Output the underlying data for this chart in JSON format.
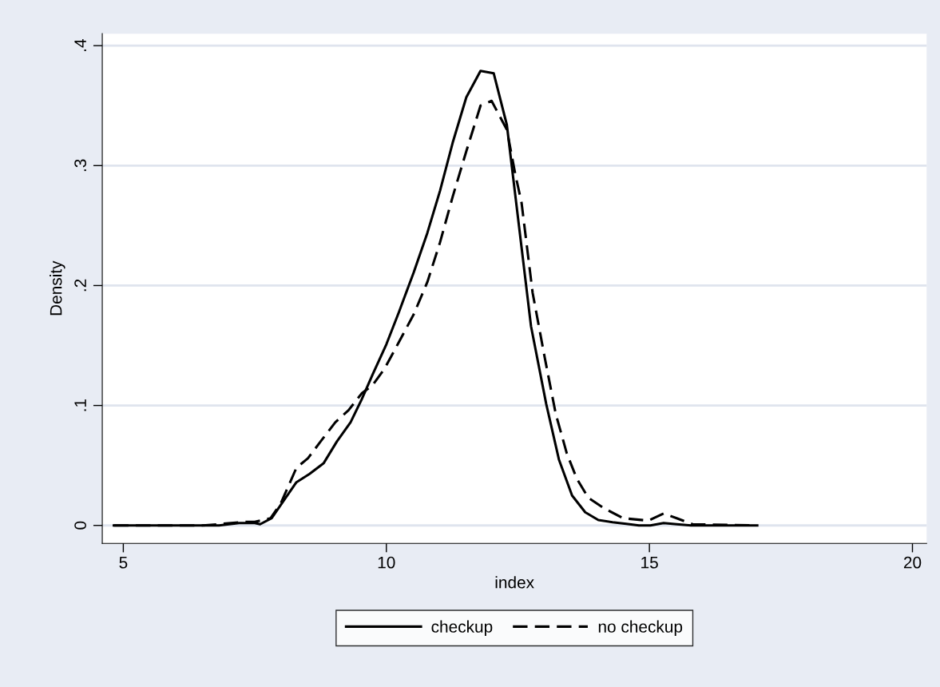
{
  "chart_data": {
    "type": "line",
    "xlabel": "index",
    "ylabel": "Density",
    "xlim": [
      4.6,
      20.27
    ],
    "ylim": [
      -0.015,
      0.41
    ],
    "xticks": [
      5,
      10,
      15,
      20
    ],
    "yticks": [
      {
        "value": 0,
        "label": "0"
      },
      {
        "value": 0.1,
        "label": ".1"
      },
      {
        "value": 0.2,
        "label": ".2"
      },
      {
        "value": 0.3,
        "label": ".3"
      },
      {
        "value": 0.4,
        "label": ".4"
      }
    ],
    "grid": "y",
    "legend": "bottom",
    "marker": "none",
    "series": [
      {
        "name": "checkup",
        "color": "#000000",
        "line_style": "solid",
        "x": [
          4.82,
          6.82,
          7.2,
          7.5,
          7.6,
          7.82,
          8.29,
          8.54,
          8.81,
          9.06,
          9.32,
          9.53,
          9.74,
          10.0,
          10.24,
          10.52,
          10.78,
          11.02,
          11.26,
          11.52,
          11.79,
          12.04,
          12.29,
          12.75,
          13.04,
          13.28,
          13.53,
          13.78,
          14.03,
          14.3,
          14.56,
          14.8,
          15.02,
          15.27,
          15.52,
          15.79,
          17.05
        ],
        "values": [
          0,
          0,
          0.002,
          0.002,
          0.001,
          0.006,
          0.036,
          0.043,
          0.052,
          0.07,
          0.086,
          0.105,
          0.126,
          0.151,
          0.178,
          0.211,
          0.244,
          0.279,
          0.319,
          0.357,
          0.379,
          0.377,
          0.334,
          0.166,
          0.101,
          0.055,
          0.025,
          0.011,
          0.0045,
          0.0027,
          0.0013,
          0,
          0,
          0.002,
          0.001,
          0,
          0
        ]
      },
      {
        "name": "no checkup",
        "color": "#000000",
        "line_style": "dashed",
        "x": [
          4.82,
          6.5,
          6.8,
          7.3,
          7.5,
          7.8,
          8.0,
          8.29,
          8.51,
          8.75,
          9.03,
          9.28,
          9.53,
          9.74,
          9.97,
          10.24,
          10.52,
          10.78,
          11.02,
          11.26,
          11.52,
          11.79,
          12.0,
          12.29,
          12.45,
          12.57,
          12.78,
          13.01,
          13.22,
          13.43,
          13.62,
          13.84,
          14.15,
          14.5,
          14.98,
          15.27,
          15.52,
          15.82,
          17.03
        ],
        "values": [
          0,
          0,
          0.001,
          0.003,
          0.003,
          0.006,
          0.019,
          0.048,
          0.056,
          0.07,
          0.086,
          0.096,
          0.11,
          0.117,
          0.131,
          0.153,
          0.176,
          0.203,
          0.236,
          0.274,
          0.312,
          0.35,
          0.354,
          0.33,
          0.293,
          0.269,
          0.194,
          0.14,
          0.093,
          0.06,
          0.039,
          0.023,
          0.014,
          0.006,
          0.004,
          0.01,
          0.006,
          0.001,
          0
        ]
      }
    ]
  }
}
